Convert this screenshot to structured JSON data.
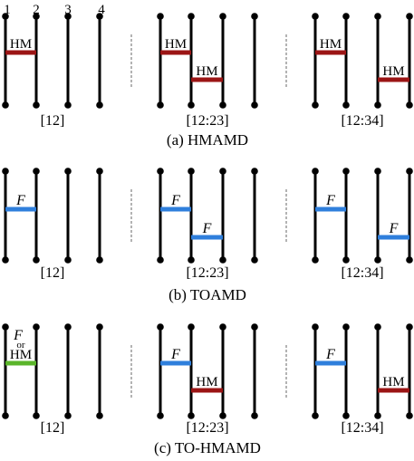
{
  "line_labels": [
    "1",
    "2",
    "3",
    "4"
  ],
  "colors": {
    "line": "#000000",
    "hm_bar": "#9b1515",
    "f_bar": "#2f7fdc",
    "mixed_bar": "#5ab52a",
    "separator": "#9a9a9a"
  },
  "rows": [
    {
      "caption": "(a) HMAMD",
      "panels": [
        {
          "label": "[12]",
          "bars": [
            {
              "text": "HM",
              "color": "hm_bar"
            }
          ]
        },
        {
          "label": "[12:23]",
          "bars": [
            {
              "text": "HM",
              "color": "hm_bar"
            },
            {
              "text": "HM",
              "color": "hm_bar"
            }
          ]
        },
        {
          "label": "[12:34]",
          "bars": [
            {
              "text": "HM",
              "color": "hm_bar"
            },
            {
              "text": "HM",
              "color": "hm_bar"
            }
          ]
        }
      ]
    },
    {
      "caption": "(b) TOAMD",
      "panels": [
        {
          "label": "[12]",
          "bars": [
            {
              "text": "F",
              "color": "f_bar"
            }
          ]
        },
        {
          "label": "[12:23]",
          "bars": [
            {
              "text": "F",
              "color": "f_bar"
            },
            {
              "text": "F",
              "color": "f_bar"
            }
          ]
        },
        {
          "label": "[12:34]",
          "bars": [
            {
              "text": "F",
              "color": "f_bar"
            },
            {
              "text": "F",
              "color": "f_bar"
            }
          ]
        }
      ]
    },
    {
      "caption": "(c) TO-HMAMD",
      "panels": [
        {
          "label": "[12]",
          "bars": [
            {
              "text": "F",
              "or": "or",
              "text2": "HM",
              "color": "mixed_bar"
            }
          ]
        },
        {
          "label": "[12:23]",
          "bars": [
            {
              "text": "F",
              "color": "f_bar"
            },
            {
              "text": "HM",
              "color": "hm_bar"
            }
          ]
        },
        {
          "label": "[12:34]",
          "bars": [
            {
              "text": "F",
              "color": "f_bar"
            },
            {
              "text": "HM",
              "color": "hm_bar"
            }
          ]
        }
      ]
    }
  ]
}
